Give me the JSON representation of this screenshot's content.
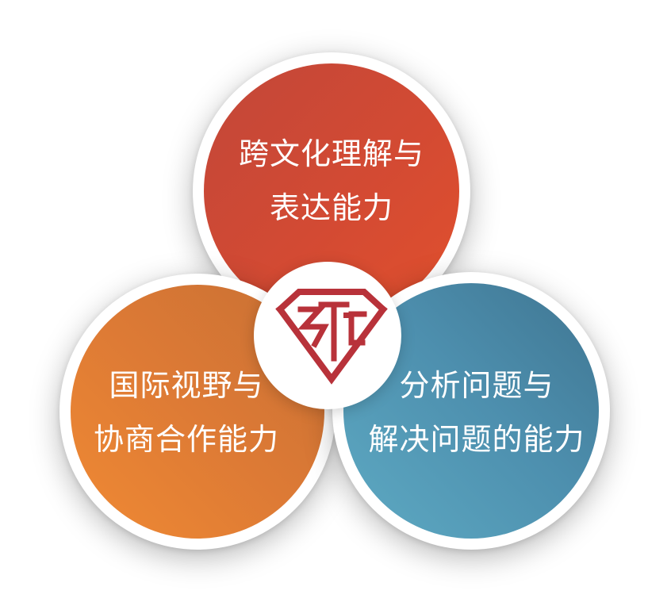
{
  "circles": [
    {
      "id": "top",
      "line1": "跨文化理解与",
      "line2": "表达能力",
      "color": "#d04a35"
    },
    {
      "id": "left",
      "line1": "国际视野与",
      "line2": "协商合作能力",
      "color": "#e07d35"
    },
    {
      "id": "right",
      "line1": "分析问题与",
      "line2": "解决问题的能力",
      "color": "#4e8fae"
    }
  ],
  "center_logo": {
    "icon": "diamond-emblem-icon",
    "color": "#b8323a"
  }
}
